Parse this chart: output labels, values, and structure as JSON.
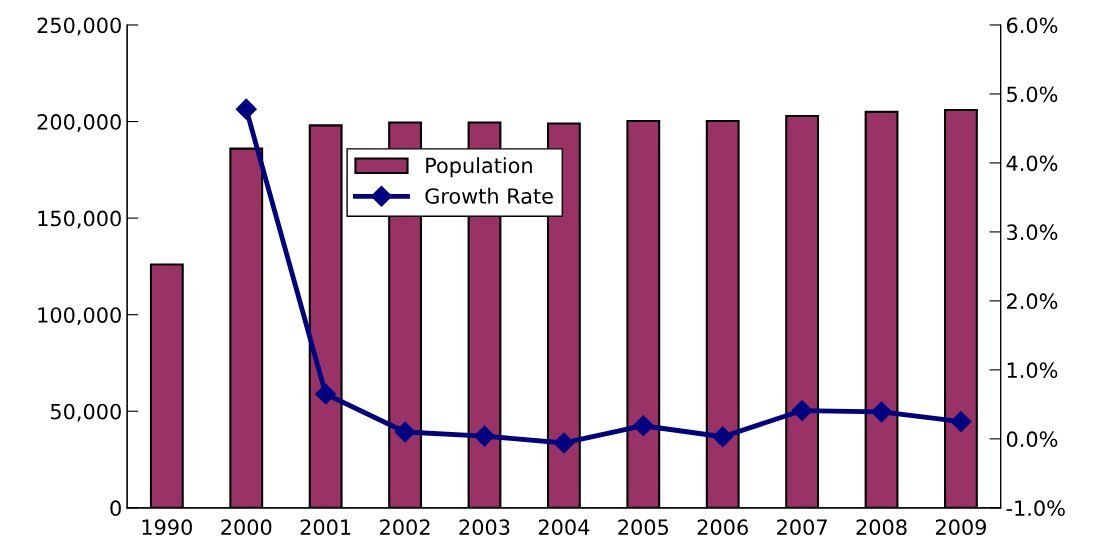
{
  "chart_data": {
    "type": "bar",
    "categories": [
      "1990",
      "2000",
      "2001",
      "2002",
      "2003",
      "2004",
      "2005",
      "2006",
      "2007",
      "2008",
      "2009"
    ],
    "series": [
      {
        "name": "Population",
        "color": "#993366",
        "values": [
          126000,
          186000,
          198000,
          199500,
          199500,
          199000,
          200300,
          200300,
          202900,
          205000,
          206000
        ]
      },
      {
        "name": "Growth Rate",
        "type": "line",
        "axis": "y2",
        "color": "#000080",
        "marker": "diamond",
        "values": [
          null,
          4.78,
          0.65,
          0.1,
          0.04,
          -0.06,
          0.19,
          0.03,
          0.41,
          0.39,
          0.25
        ]
      }
    ],
    "ylim": [
      0,
      250000
    ],
    "yticks": [
      {
        "value": 0,
        "label": "0"
      },
      {
        "value": 50000,
        "label": "50,000"
      },
      {
        "value": 100000,
        "label": "100,000"
      },
      {
        "value": 150000,
        "label": "150,000"
      },
      {
        "value": 200000,
        "label": "200,000"
      },
      {
        "value": 250000,
        "label": "250,000"
      }
    ],
    "y2lim": [
      -1,
      6
    ],
    "y2ticks": [
      {
        "value": -1,
        "label": "-1.0%"
      },
      {
        "value": 0,
        "label": "0.0%"
      },
      {
        "value": 1,
        "label": "1.0%"
      },
      {
        "value": 2,
        "label": "2.0%"
      },
      {
        "value": 3,
        "label": "3.0%"
      },
      {
        "value": 4,
        "label": "4.0%"
      },
      {
        "value": 5,
        "label": "5.0%"
      },
      {
        "value": 6,
        "label": "6.0%"
      }
    ],
    "grid": false,
    "legend": "top"
  }
}
